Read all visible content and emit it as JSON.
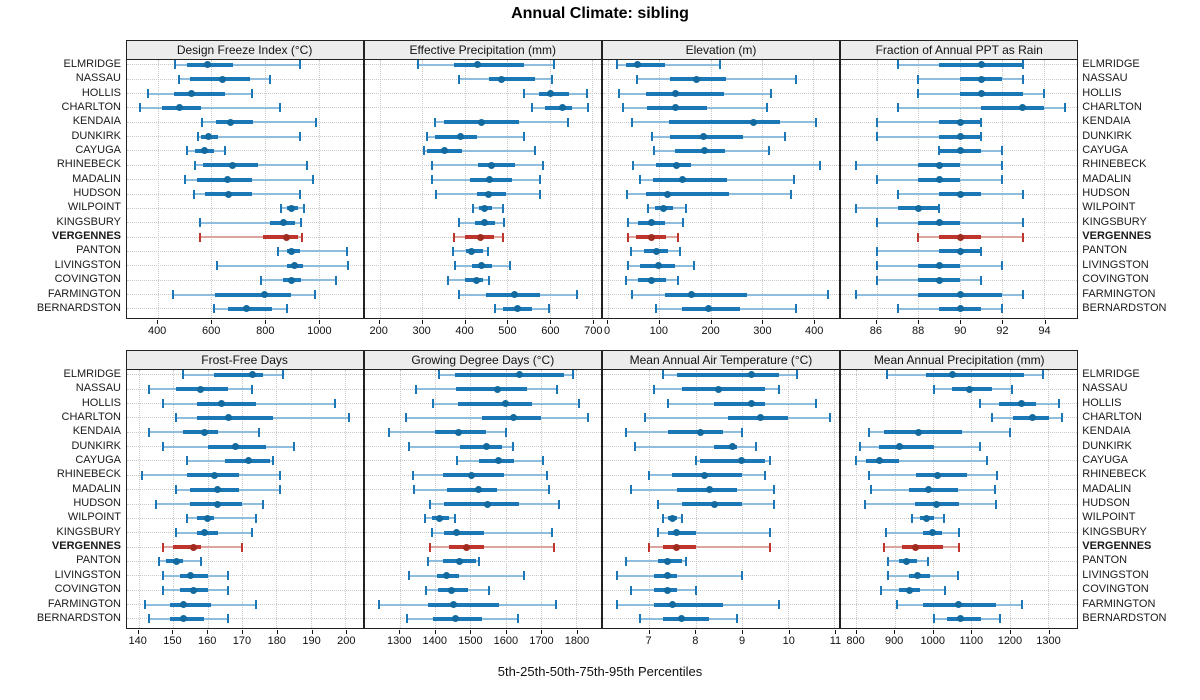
{
  "title": "Annual Climate: sibling",
  "caption": "5th-25th-50th-75th-95th Percentiles",
  "highlight_site": "VERGENNES",
  "sites": [
    "ELMRIDGE",
    "NASSAU",
    "HOLLIS",
    "CHARLTON",
    "KENDAIA",
    "DUNKIRK",
    "CAYUGA",
    "RHINEBECK",
    "MADALIN",
    "HUDSON",
    "WILPOINT",
    "KINGSBURY",
    "VERGENNES",
    "PANTON",
    "LIVINGSTON",
    "COVINGTON",
    "FARMINGTON",
    "BERNARDSTON"
  ],
  "colors": {
    "series": "#1b77b5",
    "series_light": "#8fbdde",
    "series_dot": "#136a9f",
    "highlight": "#bf342c",
    "highlight_light": "#dba49c",
    "highlight_dot": "#a02c20",
    "strip_bg": "#ececec",
    "panel_border": "#222222",
    "grid": "#c8c8c8",
    "text": "#111111"
  },
  "chart_data": {
    "type": "scatter",
    "subtype": "lattice-style percentile interval dotplot (whisker 5th-95th, thick bar 25th-75th, dot 50th)",
    "title": "Annual Climate: sibling",
    "caption": "5th-25th-50th-75th-95th Percentiles",
    "percentiles": [
      5,
      25,
      50,
      75,
      95
    ],
    "categories": [
      "ELMRIDGE",
      "NASSAU",
      "HOLLIS",
      "CHARLTON",
      "KENDAIA",
      "DUNKIRK",
      "CAYUGA",
      "RHINEBECK",
      "MADALIN",
      "HUDSON",
      "WILPOINT",
      "KINGSBURY",
      "VERGENNES",
      "PANTON",
      "LIVINGSTON",
      "COVINGTON",
      "FARMINGTON",
      "BERNARDSTON"
    ],
    "highlighted_category": "VERGENNES",
    "grid": "dotted horizontal and vertical",
    "panels": [
      {
        "title": "Design Freeze Index (°C)",
        "xlim": [
          283,
          1164
        ],
        "ticks": [
          400,
          600,
          800,
          1000
        ],
        "values": [
          [
            465,
            510,
            585,
            680,
            930
          ],
          [
            478,
            520,
            640,
            745,
            818
          ],
          [
            365,
            460,
            525,
            650,
            750
          ],
          [
            335,
            415,
            480,
            560,
            855
          ],
          [
            565,
            615,
            670,
            755,
            988
          ],
          [
            550,
            560,
            590,
            625,
            930
          ],
          [
            510,
            537,
            574,
            608,
            651
          ],
          [
            540,
            570,
            680,
            775,
            958
          ],
          [
            500,
            546,
            660,
            750,
            979
          ],
          [
            535,
            575,
            663,
            750,
            930
          ],
          [
            860,
            880,
            898,
            923,
            945
          ],
          [
            558,
            818,
            868,
            910,
            933
          ],
          [
            556,
            793,
            880,
            923,
            939
          ],
          [
            849,
            880,
            898,
            929,
            1106
          ],
          [
            620,
            880,
            908,
            942,
            1109
          ],
          [
            785,
            868,
            898,
            933,
            1065
          ],
          [
            457,
            614,
            797,
            898,
            985
          ],
          [
            611,
            663,
            731,
            824,
            880
          ]
        ]
      },
      {
        "title": "Effective Precipitation (mm)",
        "xlim": [
          165,
          720
        ],
        "ticks": [
          200,
          300,
          400,
          500,
          600,
          700
        ],
        "values": [
          [
            290,
            375,
            430,
            540,
            610
          ],
          [
            386,
            456,
            486,
            566,
            604
          ],
          [
            540,
            574,
            602,
            645,
            688
          ],
          [
            557,
            588,
            631,
            653,
            690
          ],
          [
            330,
            351,
            439,
            527,
            643
          ],
          [
            311,
            331,
            390,
            429,
            540
          ],
          [
            304,
            311,
            353,
            394,
            565
          ],
          [
            323,
            431,
            464,
            519,
            584
          ],
          [
            322,
            413,
            458,
            511,
            578
          ],
          [
            333,
            429,
            455,
            496,
            576
          ],
          [
            420,
            434,
            447,
            464,
            489
          ],
          [
            387,
            424,
            447,
            471,
            492
          ],
          [
            374,
            400,
            437,
            468,
            489
          ],
          [
            373,
            402,
            417,
            442,
            455
          ],
          [
            378,
            416,
            439,
            463,
            507
          ],
          [
            361,
            400,
            427,
            442,
            456
          ],
          [
            387,
            449,
            517,
            578,
            664
          ],
          [
            471,
            489,
            525,
            558,
            598
          ]
        ]
      },
      {
        "title": "Elevation (m)",
        "xlim": [
          -10,
          450
        ],
        "ticks": [
          0,
          100,
          200,
          300,
          400
        ],
        "values": [
          [
            18,
            35,
            57,
            111,
            219
          ],
          [
            56,
            120,
            173,
            229,
            366
          ],
          [
            22,
            74,
            131,
            225,
            317
          ],
          [
            29,
            76,
            131,
            193,
            310
          ],
          [
            46,
            118,
            283,
            335,
            405
          ],
          [
            85,
            120,
            186,
            263,
            345
          ],
          [
            90,
            130,
            188,
            228,
            314
          ],
          [
            49,
            93,
            133,
            162,
            412
          ],
          [
            62,
            87,
            146,
            232,
            363
          ],
          [
            36,
            74,
            116,
            235,
            356
          ],
          [
            78,
            92,
            108,
            127,
            152
          ],
          [
            39,
            59,
            85,
            111,
            146
          ],
          [
            39,
            54,
            85,
            113,
            137
          ],
          [
            44,
            71,
            95,
            116,
            141
          ],
          [
            39,
            62,
            98,
            131,
            167
          ],
          [
            35,
            59,
            84,
            113,
            136
          ],
          [
            46,
            110,
            163,
            270,
            428
          ],
          [
            93,
            144,
            196,
            258,
            366
          ]
        ]
      },
      {
        "title": "Fraction of Annual PPT as Rain",
        "xlim": [
          84.3,
          95.6
        ],
        "ticks": [
          86,
          88,
          90,
          92,
          94
        ],
        "values": [
          [
            87,
            89,
            91,
            93,
            93
          ],
          [
            88,
            90,
            91,
            92,
            93
          ],
          [
            88,
            90,
            91,
            93,
            94
          ],
          [
            87,
            91,
            93,
            94,
            95
          ],
          [
            86,
            89,
            90,
            91,
            91
          ],
          [
            86,
            89,
            90,
            91,
            91
          ],
          [
            89,
            89,
            90,
            91,
            92
          ],
          [
            85,
            88,
            89,
            90,
            92
          ],
          [
            86,
            88,
            89,
            90,
            92
          ],
          [
            87,
            89,
            90,
            91,
            93
          ],
          [
            85,
            87,
            88,
            89,
            89
          ],
          [
            86,
            88,
            89,
            90,
            93
          ],
          [
            88,
            89,
            90,
            91,
            93
          ],
          [
            86,
            89,
            90,
            91,
            91
          ],
          [
            86,
            88,
            89,
            90,
            92
          ],
          [
            86,
            88,
            89,
            90,
            91
          ],
          [
            85,
            88,
            90,
            92,
            93
          ],
          [
            87,
            89,
            90,
            91,
            92
          ]
        ]
      },
      {
        "title": "Frost-Free Days",
        "xlim": [
          136.5,
          205
        ],
        "ticks": [
          140,
          150,
          160,
          170,
          180,
          190,
          200
        ],
        "values": [
          [
            153,
            162,
            173,
            176,
            182
          ],
          [
            143,
            151,
            158,
            166,
            173
          ],
          [
            147,
            157,
            164,
            174,
            197
          ],
          [
            151,
            157,
            166,
            179,
            201
          ],
          [
            143,
            153,
            159,
            163,
            175
          ],
          [
            147,
            160,
            168,
            177,
            185
          ],
          [
            154,
            165,
            172,
            178,
            179
          ],
          [
            141,
            154,
            162,
            169,
            181
          ],
          [
            151,
            155,
            163,
            169,
            181
          ],
          [
            145,
            155,
            163,
            170,
            176
          ],
          [
            154,
            157,
            160,
            162,
            174
          ],
          [
            151,
            157,
            159,
            163,
            173
          ],
          [
            147,
            150,
            156,
            158,
            170
          ],
          [
            146,
            148,
            151,
            153,
            158
          ],
          [
            147,
            152,
            155,
            160,
            166
          ],
          [
            147,
            152,
            156,
            160,
            166
          ],
          [
            142,
            149,
            153,
            161,
            174
          ],
          [
            143,
            149,
            153,
            159,
            166
          ]
        ]
      },
      {
        "title": "Growing Degree Days (°C)",
        "xlim": [
          1200,
          1870
        ],
        "ticks": [
          1300,
          1400,
          1500,
          1600,
          1700,
          1800
        ],
        "values": [
          [
            1410,
            1455,
            1640,
            1765,
            1790
          ],
          [
            1345,
            1460,
            1576,
            1660,
            1745
          ],
          [
            1394,
            1466,
            1600,
            1675,
            1807
          ],
          [
            1317,
            1534,
            1622,
            1699,
            1834
          ],
          [
            1268,
            1400,
            1466,
            1543,
            1600
          ],
          [
            1325,
            1470,
            1545,
            1590,
            1620
          ],
          [
            1463,
            1525,
            1579,
            1624,
            1707
          ],
          [
            1338,
            1421,
            1504,
            1595,
            1718
          ],
          [
            1341,
            1433,
            1523,
            1576,
            1723
          ],
          [
            1385,
            1424,
            1548,
            1638,
            1751
          ],
          [
            1370,
            1391,
            1411,
            1438,
            1457
          ],
          [
            1391,
            1425,
            1461,
            1539,
            1730
          ],
          [
            1386,
            1440,
            1489,
            1539,
            1737
          ],
          [
            1380,
            1421,
            1468,
            1515,
            1523
          ],
          [
            1326,
            1404,
            1432,
            1468,
            1652
          ],
          [
            1374,
            1407,
            1447,
            1492,
            1553
          ],
          [
            1242,
            1380,
            1451,
            1581,
            1742
          ],
          [
            1320,
            1394,
            1457,
            1534,
            1636
          ]
        ]
      },
      {
        "title": "Mean Annual Air Temperature (°C)",
        "xlim": [
          6.0,
          11.1
        ],
        "ticks": [
          7,
          8,
          9,
          10,
          11
        ],
        "values": [
          [
            7.3,
            7.6,
            9.2,
            9.8,
            10.2
          ],
          [
            7.1,
            7.7,
            8.5,
            9.5,
            9.8
          ],
          [
            7.4,
            8.4,
            9.2,
            9.5,
            10.6
          ],
          [
            6.9,
            8.7,
            9.4,
            10.0,
            10.9
          ],
          [
            6.5,
            7.4,
            8.1,
            8.6,
            9.0
          ],
          [
            6.7,
            8.4,
            8.8,
            8.9,
            9.3
          ],
          [
            8.0,
            8.1,
            9.0,
            9.5,
            9.6
          ],
          [
            7.0,
            7.5,
            8.2,
            9.0,
            9.5
          ],
          [
            6.6,
            7.6,
            8.3,
            8.9,
            9.7
          ],
          [
            7.2,
            7.7,
            8.4,
            9.0,
            9.7
          ],
          [
            7.3,
            7.4,
            7.5,
            7.6,
            7.7
          ],
          [
            7.2,
            7.4,
            7.6,
            8.0,
            9.6
          ],
          [
            7.0,
            7.3,
            7.6,
            8.0,
            9.6
          ],
          [
            6.5,
            7.2,
            7.4,
            7.7,
            7.8
          ],
          [
            6.3,
            7.1,
            7.4,
            7.6,
            9.0
          ],
          [
            6.6,
            7.1,
            7.4,
            7.6,
            8.0
          ],
          [
            6.3,
            7.1,
            7.5,
            8.6,
            9.8
          ],
          [
            6.8,
            7.3,
            7.7,
            8.3,
            8.9
          ]
        ]
      },
      {
        "title": "Mean Annual Precipitation (mm)",
        "xlim": [
          760,
          1377
        ],
        "ticks": [
          800,
          900,
          1000,
          1100,
          1200,
          1300
        ],
        "values": [
          [
            880,
            983,
            1052,
            1238,
            1287
          ],
          [
            1002,
            1049,
            1096,
            1154,
            1206
          ],
          [
            1124,
            1173,
            1231,
            1270,
            1328
          ],
          [
            1154,
            1208,
            1259,
            1302,
            1336
          ],
          [
            832,
            871,
            963,
            1075,
            1201
          ],
          [
            809,
            858,
            912,
            1002,
            1122
          ],
          [
            800,
            826,
            860,
            912,
            1141
          ],
          [
            834,
            955,
            1012,
            1088,
            1167
          ],
          [
            837,
            937,
            989,
            1066,
            1163
          ],
          [
            823,
            952,
            1009,
            1069,
            1165
          ],
          [
            946,
            966,
            983,
            1002,
            1029
          ],
          [
            877,
            974,
            1000,
            1023,
            1069
          ],
          [
            873,
            920,
            955,
            1027,
            1069
          ],
          [
            883,
            912,
            931,
            959,
            986
          ],
          [
            883,
            937,
            959,
            991,
            1066
          ],
          [
            863,
            912,
            940,
            967,
            1032
          ],
          [
            906,
            974,
            1066,
            1165,
            1233
          ],
          [
            1002,
            1036,
            1073,
            1126,
            1176
          ]
        ]
      }
    ]
  }
}
